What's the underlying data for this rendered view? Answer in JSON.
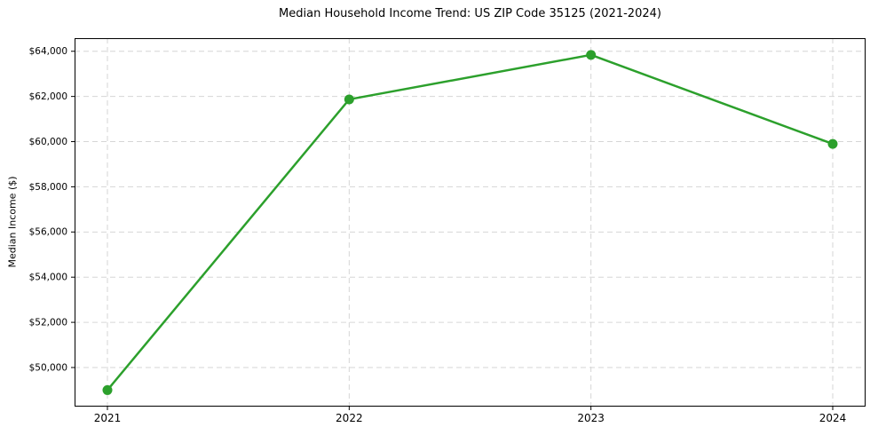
{
  "figure": {
    "background": "#ffffff"
  },
  "chart_data": {
    "type": "line",
    "title": "Median Household Income Trend: US ZIP Code 35125 (2021-2024)",
    "xlabel": "",
    "ylabel": "Median Income ($)",
    "categories": [
      "2021",
      "2022",
      "2023",
      "2024"
    ],
    "series": [
      {
        "values": [
          49000,
          61870,
          63840,
          59900
        ],
        "color": "#2ca02c",
        "marker": "circle",
        "line_width": 2.5,
        "marker_radius": 5.5
      }
    ],
    "ylim": [
      48270,
      64580
    ],
    "ytick_values": [
      50000,
      52000,
      54000,
      56000,
      58000,
      60000,
      62000,
      64000
    ],
    "ytick_labels": [
      "$50,000",
      "$52,000",
      "$54,000",
      "$56,000",
      "$58,000",
      "$60,000",
      "$62,000",
      "$64,000"
    ],
    "grid": true,
    "grid_style": "dashed",
    "grid_color": "#d6d6d6",
    "axis_color": "#000000",
    "text_color": "#000000",
    "legend": "none"
  }
}
